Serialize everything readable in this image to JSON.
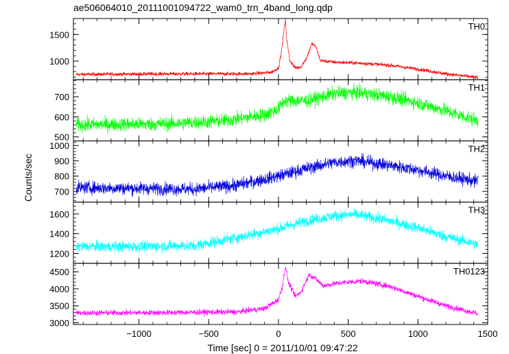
{
  "chart_data": {
    "type": "line",
    "title": "ae506064010_20111001094722_wam0_trn_4band_long.qdp",
    "xlabel": "Time [sec] 0 = 2011/10/01 09:47:22",
    "ylabel": "Counts/sec",
    "xlim": [
      -1470,
      1500
    ],
    "x_ticks": [
      -1000,
      -500,
      0,
      500,
      1000,
      1500
    ],
    "x_tick_labels": [
      "−1000",
      "−500",
      "0",
      "500",
      "1000",
      "1500"
    ],
    "data_range": [
      -1450,
      1430
    ],
    "panels": [
      {
        "name": "TH0",
        "color": "#ff0000",
        "ylim": [
          650,
          1800
        ],
        "y_ticks": [
          1000,
          1500
        ],
        "y_tick_labels": [
          "1000",
          "1500"
        ],
        "noise": 25,
        "trend": [
          [
            -1450,
            750
          ],
          [
            -800,
            760
          ],
          [
            -200,
            760
          ],
          [
            -50,
            790
          ],
          [
            0,
            870
          ],
          [
            20,
            1150
          ],
          [
            40,
            1600
          ],
          [
            50,
            1760
          ],
          [
            60,
            1400
          ],
          [
            80,
            1020
          ],
          [
            120,
            870
          ],
          [
            160,
            890
          ],
          [
            200,
            1050
          ],
          [
            240,
            1330
          ],
          [
            270,
            1260
          ],
          [
            300,
            1010
          ],
          [
            400,
            980
          ],
          [
            600,
            960
          ],
          [
            800,
            920
          ],
          [
            1000,
            850
          ],
          [
            1200,
            760
          ],
          [
            1430,
            690
          ]
        ]
      },
      {
        "name": "TH1",
        "color": "#00ff00",
        "ylim": [
          480,
          785
        ],
        "y_ticks": [
          500,
          600,
          700
        ],
        "y_tick_labels": [
          "500",
          "600",
          "700"
        ],
        "noise": 25,
        "trend": [
          [
            -1450,
            560
          ],
          [
            -800,
            565
          ],
          [
            -400,
            580
          ],
          [
            -100,
            610
          ],
          [
            0,
            640
          ],
          [
            40,
            680
          ],
          [
            200,
            680
          ],
          [
            400,
            715
          ],
          [
            550,
            722
          ],
          [
            800,
            700
          ],
          [
            1000,
            670
          ],
          [
            1200,
            630
          ],
          [
            1430,
            580
          ]
        ]
      },
      {
        "name": "TH2",
        "color": "#0000dd",
        "ylim": [
          630,
          1030
        ],
        "y_ticks": [
          700,
          800,
          900,
          1000
        ],
        "y_tick_labels": [
          "700",
          "800",
          "900",
          "1000"
        ],
        "noise": 30,
        "trend": [
          [
            -1450,
            725
          ],
          [
            -1000,
            720
          ],
          [
            -600,
            715
          ],
          [
            -300,
            740
          ],
          [
            0,
            800
          ],
          [
            200,
            850
          ],
          [
            400,
            890
          ],
          [
            550,
            902
          ],
          [
            800,
            870
          ],
          [
            1000,
            840
          ],
          [
            1200,
            800
          ],
          [
            1430,
            765
          ]
        ]
      },
      {
        "name": "TH3",
        "color": "#00ffff",
        "ylim": [
          1100,
          1720
        ],
        "y_ticks": [
          1200,
          1400,
          1600
        ],
        "y_tick_labels": [
          "1200",
          "1400",
          "1600"
        ],
        "noise": 40,
        "trend": [
          [
            -1450,
            1270
          ],
          [
            -1000,
            1270
          ],
          [
            -600,
            1280
          ],
          [
            -300,
            1360
          ],
          [
            0,
            1450
          ],
          [
            200,
            1530
          ],
          [
            400,
            1580
          ],
          [
            550,
            1595
          ],
          [
            800,
            1530
          ],
          [
            1000,
            1460
          ],
          [
            1200,
            1370
          ],
          [
            1430,
            1290
          ]
        ]
      },
      {
        "name": "TH0123",
        "color": "#ff00ff",
        "ylim": [
          2950,
          4750
        ],
        "y_ticks": [
          3000,
          3500,
          4000,
          4500
        ],
        "y_tick_labels": [
          "3000",
          "3500",
          "4000",
          "4500"
        ],
        "noise": 60,
        "trend": [
          [
            -1450,
            3290
          ],
          [
            -800,
            3300
          ],
          [
            -300,
            3320
          ],
          [
            -100,
            3420
          ],
          [
            0,
            3680
          ],
          [
            30,
            4100
          ],
          [
            50,
            4680
          ],
          [
            70,
            4200
          ],
          [
            120,
            3780
          ],
          [
            160,
            3900
          ],
          [
            220,
            4420
          ],
          [
            260,
            4320
          ],
          [
            320,
            4090
          ],
          [
            450,
            4180
          ],
          [
            600,
            4230
          ],
          [
            800,
            4070
          ],
          [
            1000,
            3780
          ],
          [
            1200,
            3500
          ],
          [
            1430,
            3270
          ]
        ]
      }
    ]
  }
}
